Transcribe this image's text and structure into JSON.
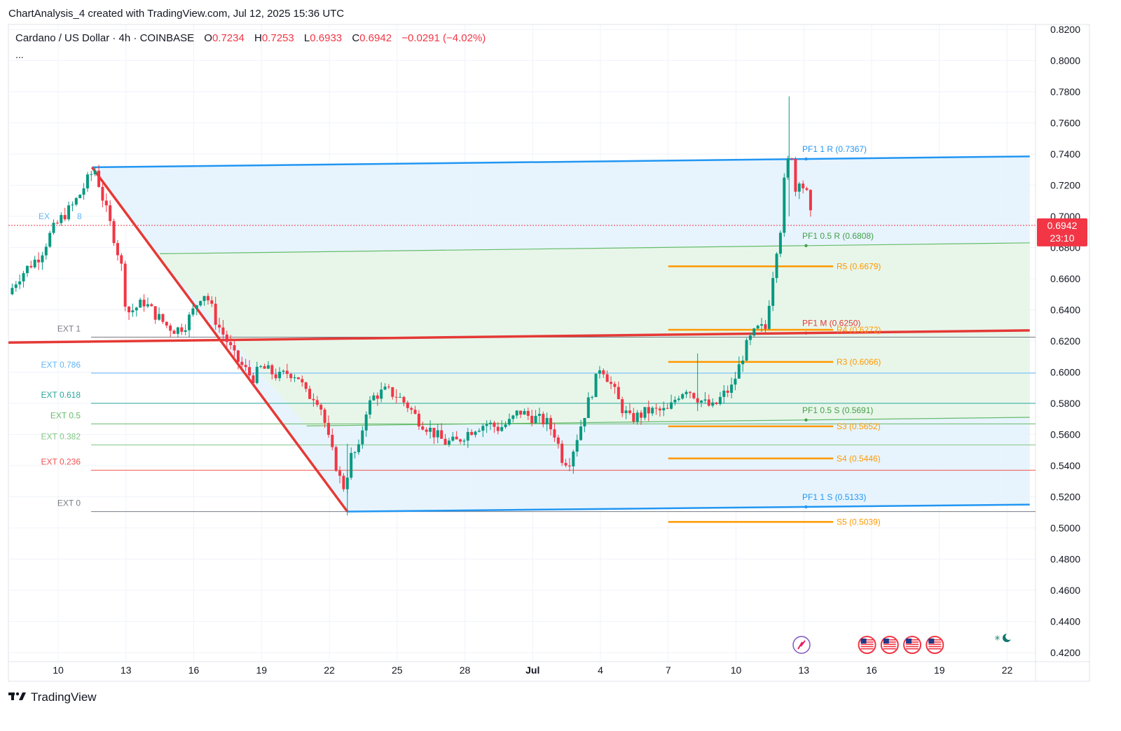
{
  "header": {
    "attribution": "ChartAnalysis_4 created with TradingView.com, Jul 12, 2025 15:36 UTC"
  },
  "legend": {
    "symbol": "Cardano / US Dollar · 4h · COINBASE",
    "open_label": "O",
    "open": "0.7234",
    "high_label": "H",
    "high": "0.7253",
    "low_label": "L",
    "low": "0.6933",
    "close_label": "C",
    "close": "0.6942",
    "change": "−0.0291 (−4.02%)",
    "more": "..."
  },
  "footer": {
    "brand": "TradingView"
  },
  "colors": {
    "up": "#089981",
    "down": "#f23645",
    "channel_blue": "#2196f3",
    "channel_fill": "#e3f2fd",
    "green_fill": "#e8f5e9",
    "orange": "#ff9800",
    "red_line": "#e53935",
    "axis_text": "#131722",
    "grid": "#f0f3fa"
  },
  "chart_data": {
    "type": "candlestick",
    "timeframe": "4h",
    "exchange": "COINBASE",
    "pair": "ADA/USD",
    "ylim": [
      0.415,
      0.825
    ],
    "y_ticks": [
      "0.8200",
      "0.8000",
      "0.7800",
      "0.7600",
      "0.7400",
      "0.7200",
      "0.7000",
      "0.6800",
      "0.6600",
      "0.6400",
      "0.6200",
      "0.6000",
      "0.5800",
      "0.5600",
      "0.5400",
      "0.5200",
      "0.5000",
      "0.4800",
      "0.4600",
      "0.4400",
      "0.4200"
    ],
    "x_ticks": [
      {
        "label": "10",
        "day": 0
      },
      {
        "label": "13",
        "day": 3
      },
      {
        "label": "16",
        "day": 6
      },
      {
        "label": "19",
        "day": 9
      },
      {
        "label": "22",
        "day": 12
      },
      {
        "label": "25",
        "day": 15
      },
      {
        "label": "28",
        "day": 18
      },
      {
        "label": "Jul",
        "day": 21,
        "bold": true
      },
      {
        "label": "4",
        "day": 24
      },
      {
        "label": "7",
        "day": 27
      },
      {
        "label": "10",
        "day": 30
      },
      {
        "label": "13",
        "day": 33
      },
      {
        "label": "16",
        "day": 36
      },
      {
        "label": "19",
        "day": 39
      },
      {
        "label": "22",
        "day": 42
      }
    ],
    "last_price": {
      "value": 0.6942,
      "label": "0.6942",
      "countdown": "23:10"
    },
    "price_path": [
      [
        -2.2,
        0.65
      ],
      [
        -1.8,
        0.66
      ],
      [
        -1.3,
        0.668
      ],
      [
        -0.8,
        0.675
      ],
      [
        -0.3,
        0.69
      ],
      [
        0.2,
        0.7
      ],
      [
        0.6,
        0.706
      ],
      [
        1.0,
        0.715
      ],
      [
        1.4,
        0.726
      ],
      [
        1.65,
        0.73
      ],
      [
        1.85,
        0.718
      ],
      [
        2.1,
        0.705
      ],
      [
        2.5,
        0.685
      ],
      [
        2.9,
        0.662
      ],
      [
        3.0,
        0.638
      ],
      [
        3.3,
        0.64
      ],
      [
        3.8,
        0.645
      ],
      [
        4.3,
        0.637
      ],
      [
        4.8,
        0.63
      ],
      [
        5.2,
        0.627
      ],
      [
        5.6,
        0.63
      ],
      [
        6.0,
        0.64
      ],
      [
        6.4,
        0.652
      ],
      [
        6.7,
        0.645
      ],
      [
        7.0,
        0.632
      ],
      [
        7.4,
        0.622
      ],
      [
        7.8,
        0.61
      ],
      [
        8.2,
        0.603
      ],
      [
        8.6,
        0.596
      ],
      [
        9.0,
        0.603
      ],
      [
        9.4,
        0.6
      ],
      [
        9.8,
        0.597
      ],
      [
        10.2,
        0.6
      ],
      [
        10.6,
        0.598
      ],
      [
        11.0,
        0.585
      ],
      [
        11.4,
        0.585
      ],
      [
        11.7,
        0.575
      ],
      [
        11.9,
        0.56
      ],
      [
        12.2,
        0.545
      ],
      [
        12.5,
        0.53
      ],
      [
        12.7,
        0.525
      ],
      [
        12.9,
        0.545
      ],
      [
        13.3,
        0.55
      ],
      [
        13.6,
        0.575
      ],
      [
        14.0,
        0.585
      ],
      [
        14.5,
        0.588
      ],
      [
        15.0,
        0.585
      ],
      [
        15.5,
        0.578
      ],
      [
        15.9,
        0.57
      ],
      [
        16.3,
        0.565
      ],
      [
        16.7,
        0.56
      ],
      [
        17.1,
        0.555
      ],
      [
        17.6,
        0.555
      ],
      [
        18.0,
        0.56
      ],
      [
        18.5,
        0.565
      ],
      [
        19.0,
        0.567
      ],
      [
        19.5,
        0.564
      ],
      [
        20.0,
        0.568
      ],
      [
        20.4,
        0.575
      ],
      [
        20.8,
        0.572
      ],
      [
        21.2,
        0.57
      ],
      [
        21.6,
        0.568
      ],
      [
        22.0,
        0.56
      ],
      [
        22.3,
        0.545
      ],
      [
        22.6,
        0.542
      ],
      [
        23.0,
        0.56
      ],
      [
        23.4,
        0.578
      ],
      [
        23.8,
        0.595
      ],
      [
        24.0,
        0.605
      ],
      [
        24.2,
        0.6
      ],
      [
        24.6,
        0.588
      ],
      [
        24.9,
        0.578
      ],
      [
        25.3,
        0.57
      ],
      [
        25.7,
        0.572
      ],
      [
        26.1,
        0.575
      ],
      [
        26.5,
        0.575
      ],
      [
        27.0,
        0.575
      ],
      [
        27.4,
        0.585
      ],
      [
        27.8,
        0.59
      ],
      [
        28.2,
        0.585
      ],
      [
        28.6,
        0.58
      ],
      [
        29.0,
        0.577
      ],
      [
        29.4,
        0.585
      ],
      [
        29.8,
        0.59
      ],
      [
        30.1,
        0.602
      ],
      [
        30.4,
        0.615
      ],
      [
        30.7,
        0.623
      ],
      [
        31.0,
        0.628
      ],
      [
        31.3,
        0.628
      ],
      [
        31.6,
        0.66
      ],
      [
        31.8,
        0.68
      ],
      [
        32.0,
        0.695
      ],
      [
        32.15,
        0.725
      ],
      [
        32.3,
        0.735
      ],
      [
        32.45,
        0.743
      ],
      [
        32.6,
        0.715
      ],
      [
        32.8,
        0.725
      ],
      [
        33.0,
        0.718
      ],
      [
        33.2,
        0.712
      ],
      [
        33.35,
        0.6942
      ]
    ],
    "spikes": [
      {
        "day": 32.35,
        "high": 0.777,
        "low": 0.7
      },
      {
        "day": 28.3,
        "high": 0.612,
        "low": 0.575
      },
      {
        "day": 12.8,
        "high": 0.554,
        "low": 0.508
      }
    ],
    "channel": {
      "upper": [
        [
          1.5,
          0.7315
        ],
        [
          43.0,
          0.7385
        ]
      ],
      "lower": [
        [
          12.8,
          0.5105
        ],
        [
          43.0,
          0.515
        ]
      ],
      "mid_upper": [
        [
          4.5,
          0.676
        ],
        [
          43.0,
          0.683
        ]
      ],
      "mid_lower": [
        [
          11.0,
          0.5655
        ],
        [
          43.0,
          0.571
        ]
      ],
      "mid_red": [
        [
          -2.2,
          0.619
        ],
        [
          43.0,
          0.6268
        ]
      ]
    },
    "channel_labels": [
      {
        "text": "PF1 1 R (0.7367)",
        "day": 33.0,
        "y": 0.7367,
        "color": "#2196f3"
      },
      {
        "text": "PF1 0.5 R (0.6808)",
        "day": 33.0,
        "y": 0.6808,
        "color": "#43a047"
      },
      {
        "text": "PF1 M (0.6250)",
        "day": 33.0,
        "y": 0.625,
        "color": "#e53935"
      },
      {
        "text": "PF1 0.5 S (0.5691)",
        "day": 33.0,
        "y": 0.5691,
        "color": "#43a047"
      },
      {
        "text": "PF1 1 S (0.5133)",
        "day": 33.0,
        "y": 0.5133,
        "color": "#2196f3"
      }
    ],
    "down_leg": [
      [
        1.5,
        0.7315
      ],
      [
        12.8,
        0.5105
      ]
    ],
    "extensions": [
      {
        "label": "EXT 1",
        "value": 0.6225,
        "color": "#787b86"
      },
      {
        "label": "EXT 0.786",
        "value": 0.5994,
        "color": "#64b5f6"
      },
      {
        "label": "EXT 0.618",
        "value": 0.58,
        "color": "#26a69a"
      },
      {
        "label": "EXT 0.5",
        "value": 0.5668,
        "color": "#66bb6a"
      },
      {
        "label": "EXT 0.382",
        "value": 0.5533,
        "color": "#81c784"
      },
      {
        "label": "EXT 0.236",
        "value": 0.537,
        "color": "#ef5350"
      },
      {
        "label": "EXT 0",
        "value": 0.5105,
        "color": "#787b86"
      }
    ],
    "ext_partial_label": {
      "text_start": "EX",
      "text_end": "8",
      "value": 0.7
    },
    "pivots": [
      {
        "label": "R5 (0.6679)",
        "value": 0.6679
      },
      {
        "label": "R4 (0.6272)",
        "value": 0.6272
      },
      {
        "label": "R3 (0.6066)",
        "value": 0.6066
      },
      {
        "label": "S3 (0.5652)",
        "value": 0.5652
      },
      {
        "label": "S4 (0.5446)",
        "value": 0.5446
      },
      {
        "label": "S5 (0.5039)",
        "value": 0.5039
      }
    ],
    "pivot_span": [
      27.0,
      34.3
    ],
    "event_markers": {
      "ai_icon_day": 32.9,
      "flags_days": [
        35.8,
        36.8,
        37.8,
        38.8
      ],
      "weather_day": 41.8
    }
  }
}
